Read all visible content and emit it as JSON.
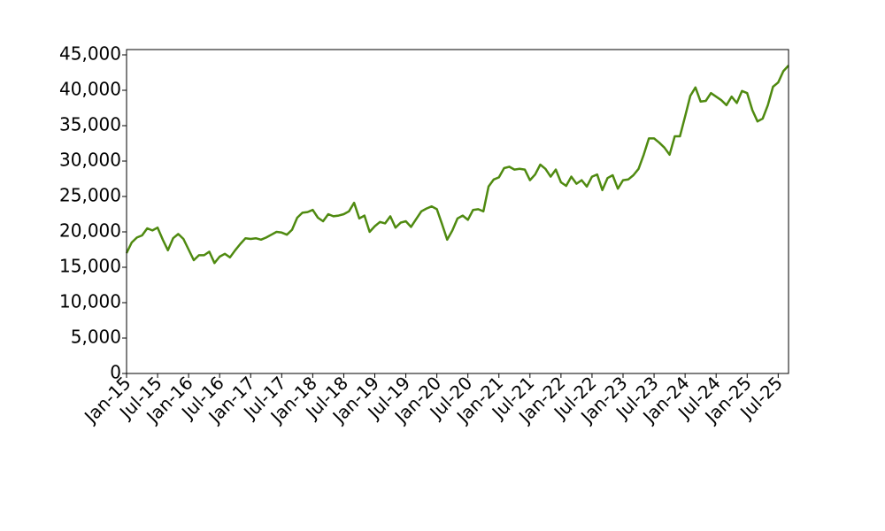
{
  "chart_data": {
    "type": "line",
    "x": [
      "2015-01",
      "2015-02",
      "2015-03",
      "2015-04",
      "2015-05",
      "2015-06",
      "2015-07",
      "2015-08",
      "2015-09",
      "2015-10",
      "2015-11",
      "2015-12",
      "2016-01",
      "2016-02",
      "2016-03",
      "2016-04",
      "2016-05",
      "2016-06",
      "2016-07",
      "2016-08",
      "2016-09",
      "2016-10",
      "2016-11",
      "2016-12",
      "2017-01",
      "2017-02",
      "2017-03",
      "2017-04",
      "2017-05",
      "2017-06",
      "2017-07",
      "2017-08",
      "2017-09",
      "2017-10",
      "2017-11",
      "2017-12",
      "2018-01",
      "2018-02",
      "2018-03",
      "2018-04",
      "2018-05",
      "2018-06",
      "2018-07",
      "2018-08",
      "2018-09",
      "2018-10",
      "2018-11",
      "2018-12",
      "2019-01",
      "2019-02",
      "2019-03",
      "2019-04",
      "2019-05",
      "2019-06",
      "2019-07",
      "2019-08",
      "2019-09",
      "2019-10",
      "2019-11",
      "2019-12",
      "2020-01",
      "2020-02",
      "2020-03",
      "2020-04",
      "2020-05",
      "2020-06",
      "2020-07",
      "2020-08",
      "2020-09",
      "2020-10",
      "2020-11",
      "2020-12",
      "2021-01",
      "2021-02",
      "2021-03",
      "2021-04",
      "2021-05",
      "2021-06",
      "2021-07",
      "2021-08",
      "2021-09",
      "2021-10",
      "2021-11",
      "2021-12",
      "2022-01",
      "2022-02",
      "2022-03",
      "2022-04",
      "2022-05",
      "2022-06",
      "2022-07",
      "2022-08",
      "2022-09",
      "2022-10",
      "2022-11",
      "2022-12",
      "2023-01",
      "2023-02",
      "2023-03",
      "2023-04",
      "2023-05",
      "2023-06",
      "2023-07",
      "2023-08",
      "2023-09",
      "2023-10",
      "2023-11",
      "2023-12",
      "2024-01",
      "2024-02",
      "2024-03",
      "2024-04",
      "2024-05",
      "2024-06",
      "2024-07",
      "2024-08",
      "2024-09",
      "2024-10",
      "2024-11",
      "2024-12",
      "2025-01",
      "2025-02",
      "2025-03",
      "2025-04",
      "2025-05",
      "2025-06",
      "2025-07",
      "2025-08",
      "2025-09"
    ],
    "series": [
      {
        "color": "#4f8a10",
        "values": [
          17000,
          18500,
          19200,
          19500,
          20500,
          20200,
          20600,
          18900,
          17400,
          19100,
          19700,
          19000,
          17500,
          16000,
          16700,
          16700,
          17200,
          15600,
          16500,
          16900,
          16400,
          17400,
          18300,
          19100,
          19000,
          19100,
          18900,
          19200,
          19600,
          20000,
          19900,
          19600,
          20300,
          22000,
          22700,
          22800,
          23100,
          22000,
          21500,
          22500,
          22200,
          22300,
          22500,
          22900,
          24100,
          21900,
          22300,
          20000,
          20800,
          21400,
          21200,
          22200,
          20600,
          21300,
          21500,
          20700,
          21800,
          22900,
          23300,
          23600,
          23200,
          21100,
          18900,
          20200,
          21900,
          22300,
          21700,
          23100,
          23200,
          22900,
          26400,
          27400,
          27700,
          29000,
          29200,
          28800,
          28900,
          28800,
          27300,
          28100,
          29500,
          28900,
          27800,
          28800,
          27000,
          26500,
          27800,
          26800,
          27300,
          26400,
          27800,
          28100,
          25900,
          27600,
          28000,
          26100,
          27300,
          27400,
          28000,
          28900,
          30900,
          33200,
          33200,
          32600,
          31900,
          30900,
          33500,
          33500,
          36300,
          39200,
          40400,
          38400,
          38500,
          39600,
          39100,
          38600,
          37900,
          39100,
          38200,
          39900,
          39600,
          37200,
          35600,
          36000,
          37900,
          40500,
          41100,
          42700,
          43500
        ]
      }
    ],
    "xlim": [
      "2015-01",
      "2025-09"
    ],
    "xticks": [
      {
        "value": "2015-01",
        "label": "Jan-15"
      },
      {
        "value": "2015-07",
        "label": "Jul-15"
      },
      {
        "value": "2016-01",
        "label": "Jan-16"
      },
      {
        "value": "2016-07",
        "label": "Jul-16"
      },
      {
        "value": "2017-01",
        "label": "Jan-17"
      },
      {
        "value": "2017-07",
        "label": "Jul-17"
      },
      {
        "value": "2018-01",
        "label": "Jan-18"
      },
      {
        "value": "2018-07",
        "label": "Jul-18"
      },
      {
        "value": "2019-01",
        "label": "Jan-19"
      },
      {
        "value": "2019-07",
        "label": "Jul-19"
      },
      {
        "value": "2020-01",
        "label": "Jan-20"
      },
      {
        "value": "2020-07",
        "label": "Jul-20"
      },
      {
        "value": "2021-01",
        "label": "Jan-21"
      },
      {
        "value": "2021-07",
        "label": "Jul-21"
      },
      {
        "value": "2022-01",
        "label": "Jan-22"
      },
      {
        "value": "2022-07",
        "label": "Jul-22"
      },
      {
        "value": "2023-01",
        "label": "Jan-23"
      },
      {
        "value": "2023-07",
        "label": "Jul-23"
      },
      {
        "value": "2024-01",
        "label": "Jan-24"
      },
      {
        "value": "2024-07",
        "label": "Jul-24"
      },
      {
        "value": "2025-01",
        "label": "Jan-25"
      },
      {
        "value": "2025-07",
        "label": "Jul-25"
      }
    ],
    "ylim": [
      0,
      45750
    ],
    "yticks": [
      0,
      {
        "value": 5000,
        "label": "5,000"
      },
      {
        "value": 10000,
        "label": "10,000"
      },
      {
        "value": 15000,
        "label": "15,000"
      },
      {
        "value": 20000,
        "label": "20,000"
      },
      {
        "value": 25000,
        "label": "25,000"
      },
      {
        "value": 30000,
        "label": "30,000"
      },
      {
        "value": 35000,
        "label": "35,000"
      },
      {
        "value": 40000,
        "label": "40,000"
      },
      {
        "value": 45000,
        "label": "45,000"
      }
    ],
    "grid": false
  }
}
